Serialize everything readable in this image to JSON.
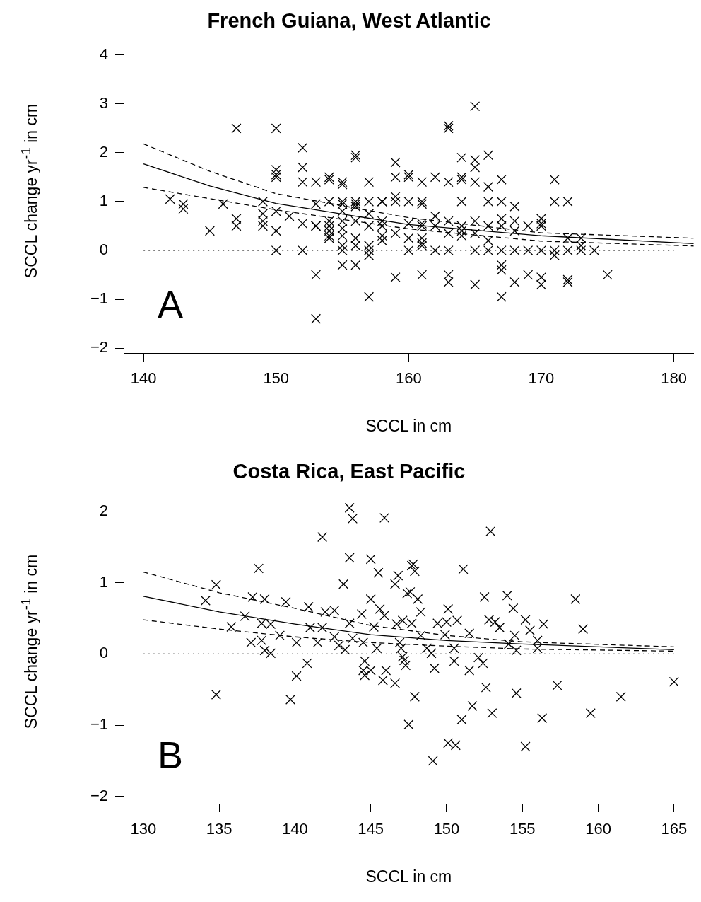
{
  "chart_data": [
    {
      "type": "scatter",
      "title": "French Guiana, West Atlantic",
      "xlabel": "SCCL in cm",
      "ylabel": "SCCL change yr$^{-1}$ in cm",
      "annotations": [
        "A"
      ],
      "xlim": [
        138.5,
        181.5
      ],
      "xticks": [
        140,
        150,
        160,
        170,
        180
      ],
      "ylim": [
        -2.1,
        4.1
      ],
      "yticks": [
        -2,
        -1,
        0,
        1,
        2,
        3,
        4
      ],
      "grid": false,
      "legend": false,
      "marker": "cross",
      "series": [
        {
          "type": "scatter",
          "color": "#000000",
          "x": [
            142,
            143,
            143,
            145,
            146,
            147,
            147,
            147,
            149,
            149,
            149,
            149,
            150,
            150,
            150,
            150,
            150,
            150,
            150,
            151,
            152,
            152,
            152,
            152,
            152,
            153,
            153,
            153,
            153,
            153,
            153,
            154,
            154,
            154,
            154,
            154,
            154,
            154,
            154,
            155,
            155,
            155,
            155,
            155,
            155,
            155,
            155,
            155,
            155,
            155,
            156,
            156,
            156,
            156,
            156,
            156,
            156,
            156,
            156,
            157,
            157,
            157,
            157,
            157,
            157,
            157,
            157,
            158,
            158,
            158,
            158,
            158,
            158,
            159,
            159,
            159,
            159,
            159,
            159,
            160,
            160,
            160,
            160,
            160,
            160,
            161,
            161,
            161,
            161,
            161,
            161,
            161,
            161,
            161,
            162,
            162,
            162,
            162,
            163,
            163,
            163,
            163,
            163,
            163,
            163,
            163,
            164,
            164,
            164,
            164,
            164,
            164,
            164,
            165,
            165,
            165,
            165,
            165,
            165,
            165,
            165,
            166,
            166,
            166,
            166,
            166,
            166,
            167,
            167,
            167,
            167,
            167,
            167,
            167,
            167,
            168,
            168,
            168,
            168,
            168,
            169,
            169,
            169,
            170,
            170,
            170,
            170,
            170,
            170,
            171,
            171,
            171,
            171,
            172,
            172,
            172,
            172,
            172,
            173,
            173,
            173,
            174,
            175
          ],
          "values": [
            1.05,
            0.95,
            0.85,
            0.4,
            0.95,
            2.5,
            0.65,
            0.5,
            1.0,
            0.75,
            0.6,
            0.5,
            2.5,
            1.65,
            1.55,
            1.5,
            0.8,
            0.4,
            0.0,
            0.7,
            2.1,
            1.7,
            1.4,
            0.55,
            0.0,
            1.4,
            0.95,
            0.5,
            0.5,
            -0.5,
            -1.4,
            1.5,
            1.45,
            1.0,
            0.6,
            0.5,
            0.4,
            0.3,
            0.25,
            1.4,
            1.35,
            1.0,
            0.95,
            0.8,
            0.6,
            0.45,
            0.3,
            0.1,
            0.0,
            -0.3,
            1.95,
            1.9,
            1.0,
            0.95,
            0.9,
            0.6,
            0.25,
            0.1,
            -0.3,
            1.4,
            1.0,
            0.75,
            0.5,
            0.1,
            0.0,
            -0.1,
            -0.95,
            1.0,
            1.0,
            0.6,
            0.5,
            0.3,
            0.2,
            1.8,
            1.5,
            1.1,
            1.0,
            0.35,
            -0.55,
            1.55,
            1.5,
            1.0,
            0.55,
            0.25,
            0.0,
            1.4,
            1.0,
            0.95,
            0.55,
            0.5,
            0.25,
            0.15,
            0.1,
            -0.5,
            1.5,
            0.7,
            0.5,
            0.0,
            2.55,
            2.5,
            1.4,
            0.6,
            0.35,
            0.0,
            -0.5,
            -0.65,
            1.9,
            1.5,
            1.45,
            1.0,
            0.5,
            0.4,
            0.3,
            2.95,
            1.85,
            1.7,
            1.4,
            0.6,
            0.35,
            0.0,
            -0.7,
            1.95,
            1.3,
            1.0,
            0.5,
            0.2,
            0.0,
            1.45,
            1.0,
            0.65,
            0.5,
            0.0,
            -0.3,
            -0.4,
            -0.95,
            0.9,
            0.6,
            0.4,
            0.0,
            -0.65,
            0.5,
            0.0,
            -0.5,
            0.65,
            0.55,
            0.5,
            0.0,
            -0.55,
            -0.7,
            1.45,
            1.0,
            0.0,
            -0.1,
            1.0,
            0.25,
            0.0,
            -0.6,
            -0.65,
            0.25,
            0.1,
            0.0,
            0.0,
            -0.5
          ]
        },
        {
          "type": "line",
          "color": "#000000",
          "line_style": "solid",
          "marker": "none",
          "x": [
            140,
            145,
            150,
            160,
            170,
            181.5
          ],
          "values": [
            1.77,
            1.32,
            0.96,
            0.53,
            0.3,
            0.14
          ]
        },
        {
          "type": "line",
          "color": "#000000",
          "line_style": "dashed",
          "marker": "none",
          "x": [
            140,
            145,
            150,
            160,
            170,
            181.5
          ],
          "values": [
            2.18,
            1.62,
            1.16,
            0.67,
            0.36,
            0.25
          ]
        },
        {
          "type": "line",
          "color": "#000000",
          "line_style": "dashed",
          "marker": "none",
          "x": [
            140,
            150,
            160,
            170,
            181.5
          ],
          "values": [
            1.29,
            0.83,
            0.44,
            0.19,
            0.09
          ]
        },
        {
          "type": "line",
          "color": "#000000",
          "line_style": "dotted",
          "marker": "none",
          "x": [
            140,
            180
          ],
          "values": [
            0,
            0
          ]
        }
      ]
    },
    {
      "type": "scatter",
      "title": "Costa Rica, East Pacific",
      "xlabel": "SCCL in cm",
      "ylabel": "SCCL change yr$^{-1}$ in cm",
      "annotations": [
        "B"
      ],
      "xlim": [
        128.7,
        166.3
      ],
      "xticks": [
        130,
        135,
        140,
        145,
        150,
        155,
        160,
        165
      ],
      "ylim": [
        -2.1,
        2.15
      ],
      "yticks": [
        -2,
        -1,
        0,
        1,
        2
      ],
      "grid": false,
      "legend": false,
      "marker": "cross",
      "series": [
        {
          "type": "scatter",
          "color": "#000000",
          "x": [
            134.8,
            134.1,
            134.8,
            135.8,
            136.7,
            137.6,
            137.2,
            138.0,
            137.1,
            137.8,
            138.4,
            138.0,
            138.4,
            137.8,
            139.0,
            139.4,
            140.1,
            140.8,
            140.1,
            139.7,
            140.9,
            141.0,
            141.5,
            141.8,
            142.0,
            142.6,
            141.8,
            142.6,
            142.9,
            143.3,
            143.6,
            143.8,
            143.6,
            143.2,
            143.6,
            143.8,
            144.4,
            145.0,
            145.5,
            145.9,
            145.0,
            145.6,
            145.9,
            145.2,
            144.5,
            144.6,
            144.5,
            145.0,
            144.6,
            145.4,
            146.0,
            145.8,
            146.6,
            146.8,
            146.6,
            146.7,
            146.9,
            147.2,
            147.6,
            147.5,
            147.7,
            147.8,
            147.9,
            147.4,
            148.1,
            148.3,
            147.1,
            147.7,
            148.3,
            147.0,
            147.1,
            147.3,
            147.9,
            148.7,
            149.0,
            149.2,
            149.4,
            150.0,
            150.1,
            150.7,
            149.9,
            150.5,
            150.5,
            149.1,
            150.1,
            150.6,
            151.1,
            151.5,
            151.5,
            151.0,
            151.7,
            152.1,
            152.4,
            152.5,
            152.9,
            152.8,
            153.2,
            153.5,
            152.6,
            153.0,
            154.0,
            154.4,
            154.5,
            154.1,
            154.6,
            154.6,
            155.2,
            155.5,
            155.2,
            156.0,
            156.0,
            156.4,
            156.3,
            157.3,
            158.5,
            159.0,
            159.5,
            161.5,
            165.0
          ],
          "values": [
            0.97,
            0.75,
            -0.57,
            0.38,
            0.53,
            1.2,
            0.8,
            0.77,
            0.16,
            0.43,
            0.42,
            0.05,
            0.01,
            0.19,
            0.26,
            0.73,
            0.16,
            -0.13,
            -0.31,
            -0.64,
            0.66,
            0.37,
            0.16,
            1.64,
            0.59,
            0.61,
            0.37,
            0.24,
            0.12,
            0.06,
            2.05,
            1.9,
            1.35,
            0.98,
            0.43,
            0.22,
            0.56,
            1.33,
            1.14,
            1.91,
            0.77,
            0.63,
            0.54,
            0.38,
            0.16,
            -0.1,
            -0.23,
            -0.23,
            -0.3,
            0.08,
            -0.23,
            -0.37,
            -0.41,
            1.1,
            0.98,
            0.42,
            0.16,
            -0.09,
            0.87,
            -0.99,
            1.24,
            1.26,
            1.16,
            0.85,
            0.77,
            0.59,
            0.47,
            0.43,
            0.26,
            0.08,
            -0.04,
            -0.16,
            -0.6,
            0.08,
            0.01,
            -0.2,
            0.43,
            0.45,
            0.63,
            0.47,
            0.27,
            0.08,
            -0.1,
            -1.5,
            -1.25,
            -1.28,
            1.19,
            0.29,
            -0.23,
            -0.92,
            -0.73,
            -0.05,
            -0.13,
            0.8,
            1.72,
            0.48,
            0.45,
            0.37,
            -0.47,
            -0.83,
            0.82,
            0.64,
            0.26,
            0.14,
            0.05,
            -0.55,
            0.48,
            0.33,
            -1.3,
            0.19,
            0.08,
            0.42,
            -0.9,
            -0.44,
            0.77,
            0.35,
            -0.83,
            -0.6,
            -0.39
          ]
        },
        {
          "type": "line",
          "color": "#000000",
          "line_style": "solid",
          "marker": "none",
          "x": [
            130,
            135,
            140,
            145,
            150,
            155,
            165
          ],
          "values": [
            0.81,
            0.59,
            0.42,
            0.27,
            0.19,
            0.14,
            0.06
          ]
        },
        {
          "type": "line",
          "color": "#000000",
          "line_style": "dashed",
          "marker": "none",
          "x": [
            130,
            135,
            140,
            145,
            150,
            155,
            165
          ],
          "values": [
            1.15,
            0.86,
            0.64,
            0.4,
            0.26,
            0.17,
            0.1
          ]
        },
        {
          "type": "line",
          "color": "#000000",
          "line_style": "dashed",
          "marker": "none",
          "x": [
            130,
            135,
            140,
            145,
            150,
            155,
            165
          ],
          "values": [
            0.48,
            0.35,
            0.24,
            0.16,
            0.11,
            0.07,
            0.04
          ]
        },
        {
          "type": "line",
          "color": "#000000",
          "line_style": "dotted",
          "marker": "none",
          "x": [
            130,
            165
          ],
          "values": [
            0,
            0
          ]
        }
      ]
    }
  ]
}
